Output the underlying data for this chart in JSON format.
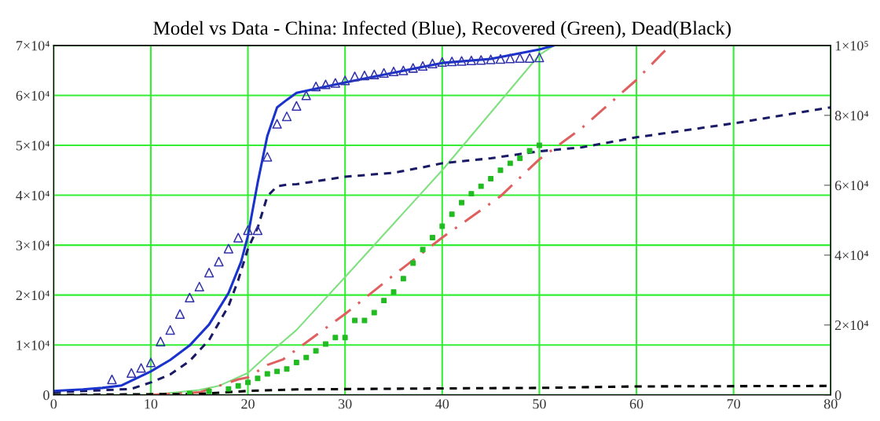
{
  "chart_data": {
    "type": "line",
    "title": "Model vs Data - China: Infected (Blue), Recovered (Green), Dead(Black)",
    "xlim": [
      0,
      80
    ],
    "xticks": [
      0,
      10,
      20,
      30,
      40,
      50,
      60,
      70,
      80
    ],
    "ylim": [
      0,
      70000
    ],
    "yticks": [
      {
        "value": 0,
        "label": "0"
      },
      {
        "value": 10000,
        "label": "1×10⁴"
      },
      {
        "value": 20000,
        "label": "2×10⁴"
      },
      {
        "value": 30000,
        "label": "3×10⁴"
      },
      {
        "value": 40000,
        "label": "4×10⁴"
      },
      {
        "value": 50000,
        "label": "5×10⁴"
      },
      {
        "value": 60000,
        "label": "6×10⁴"
      },
      {
        "value": 70000,
        "label": "7×10⁴"
      }
    ],
    "y2lim": [
      0,
      100000
    ],
    "y2ticks": [
      {
        "value": 0,
        "label": "0"
      },
      {
        "value": 20000,
        "label": "2×10⁴"
      },
      {
        "value": 40000,
        "label": "4×10⁴"
      },
      {
        "value": 60000,
        "label": "6×10⁴"
      },
      {
        "value": 80000,
        "label": "8×10⁴"
      },
      {
        "value": 100000,
        "label": "1×10⁵"
      }
    ],
    "grid": true,
    "legend": false,
    "series": [
      {
        "color": "#80e080",
        "line_style": "solid",
        "marker": "none",
        "x": [
          10,
          15,
          17,
          20,
          22,
          25,
          30,
          40,
          50,
          51.5
        ],
        "values": [
          0,
          1000,
          1800,
          4400,
          8000,
          13000,
          23600,
          45000,
          68100,
          70000
        ]
      },
      {
        "color": "#e06060",
        "line_style": "dashdot",
        "marker": "none",
        "x": [
          10,
          15,
          19,
          20,
          22,
          23.6,
          30,
          35,
          40,
          46,
          50,
          54.4,
          60,
          62.5,
          63.5
        ],
        "values": [
          0,
          500,
          3100,
          3500,
          6000,
          7100,
          16200,
          24000,
          31500,
          39800,
          47200,
          53500,
          63100,
          68100,
          70000
        ]
      },
      {
        "type": "scatter",
        "color": "#22bb22",
        "marker": "square",
        "x": [
          14,
          16,
          18,
          19,
          20,
          21,
          22,
          23,
          24,
          25,
          26,
          27,
          28,
          29,
          30,
          31,
          32,
          33,
          34,
          35,
          36,
          37,
          38,
          39,
          40,
          41,
          42,
          43,
          44,
          45,
          46,
          47,
          48,
          49,
          50
        ],
        "values": [
          300,
          700,
          1200,
          1800,
          2500,
          3300,
          4200,
          4700,
          5200,
          6500,
          7500,
          8800,
          10200,
          11500,
          11500,
          14900,
          14900,
          16500,
          18900,
          20600,
          23300,
          26400,
          29100,
          31500,
          33800,
          36200,
          38500,
          40300,
          41800,
          43300,
          45000,
          46400,
          47400,
          48900,
          50000
        ]
      },
      {
        "color": "#000000",
        "line_style": "dashed",
        "marker": "none",
        "x": [
          0,
          15,
          20,
          25,
          40,
          50,
          60,
          80
        ],
        "values": [
          0,
          200,
          800,
          1100,
          1300,
          1400,
          1700,
          1800
        ]
      },
      {
        "color": "#1a1a66",
        "line_style": "dashed",
        "marker": "none",
        "x": [
          0,
          8,
          10,
          12,
          14,
          16,
          18,
          19,
          20,
          21,
          22,
          23,
          24,
          25,
          30,
          35,
          38,
          40,
          45,
          50,
          54.4,
          60,
          70,
          80
        ],
        "values": [
          500,
          1200,
          2500,
          4100,
          6800,
          11000,
          17800,
          23000,
          29300,
          33500,
          39800,
          41800,
          42100,
          42200,
          43700,
          44500,
          45600,
          46400,
          47400,
          48800,
          49600,
          51600,
          54400,
          57600
        ]
      },
      {
        "color": "#1a33cc",
        "line_style": "solid",
        "marker": "none",
        "x": [
          0,
          3,
          5,
          7,
          10,
          12,
          14,
          16,
          18,
          19.3,
          20,
          21,
          22,
          23,
          24,
          25,
          30,
          40,
          45,
          50,
          51.5
        ],
        "values": [
          800,
          1100,
          1400,
          1900,
          4700,
          7000,
          9900,
          14100,
          20400,
          26700,
          31900,
          42500,
          51900,
          57600,
          59100,
          60500,
          62600,
          66500,
          67300,
          69200,
          70000
        ]
      },
      {
        "type": "scatter",
        "color": "#3333aa",
        "marker": "triangle",
        "x": [
          6,
          8,
          9,
          10,
          11,
          12,
          13,
          14,
          15,
          16,
          17,
          18,
          19,
          20,
          21,
          22,
          23,
          24,
          25,
          26,
          27,
          28,
          29,
          30,
          31,
          32,
          33,
          34,
          35,
          36,
          37,
          38,
          39,
          40,
          41,
          42,
          43,
          44,
          45,
          46,
          47,
          48,
          49,
          50
        ],
        "values": [
          3100,
          4400,
          5400,
          6500,
          10700,
          13000,
          16200,
          19500,
          21700,
          24500,
          26700,
          29300,
          31500,
          33000,
          33000,
          47700,
          54300,
          55800,
          57900,
          60000,
          61800,
          62200,
          62500,
          63000,
          63800,
          64000,
          64200,
          64500,
          64800,
          65000,
          65500,
          65900,
          66400,
          66700,
          66800,
          66900,
          67000,
          67100,
          67200,
          67300,
          67400,
          67500,
          67500,
          67600
        ]
      }
    ]
  }
}
